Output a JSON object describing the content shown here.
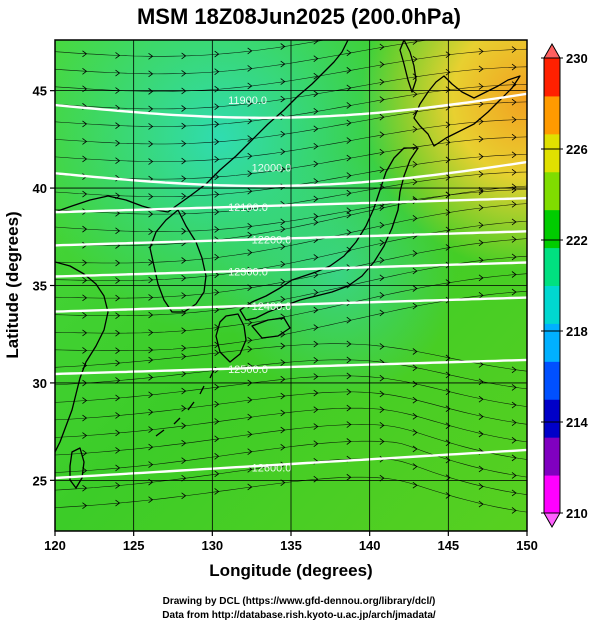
{
  "title": "MSM 18Z08Jun2025 (200.0hPa)",
  "xlabel": "Longitude (degrees)",
  "ylabel": "Latitude  (degrees)",
  "credits": [
    "Drawing by DCL (https://www.gfd-dennou.org/library/dcl/)",
    "Data from http://database.rish.kyoto-u.ac.jp/arch/jmadata/"
  ],
  "map": {
    "lon_range": [
      120,
      150
    ],
    "lat_range": [
      22.4,
      47.6
    ],
    "x_ticks": [
      "120",
      "125",
      "130",
      "135",
      "140",
      "145",
      "150"
    ],
    "y_ticks": [
      "25",
      "30",
      "35",
      "40",
      "45"
    ],
    "grid": true
  },
  "colorbar": {
    "min": 210,
    "max": 230,
    "labels": [
      "230",
      "226",
      "222",
      "218",
      "214",
      "210"
    ],
    "label_values": [
      230,
      226,
      222,
      218,
      214,
      210
    ],
    "colors": [
      "#ff00ff",
      "#8000c0",
      "#0000c8",
      "#0050ff",
      "#00b0ff",
      "#00d8d0",
      "#00e080",
      "#00cc00",
      "#80dd00",
      "#e0e000",
      "#ff9a00",
      "#ff2000"
    ]
  },
  "contours": [
    {
      "label": "11900.0",
      "lat": 44.5
    },
    {
      "label": "12000.0",
      "lat": 41.0
    },
    {
      "label": "12100.0",
      "lat": 39.0
    },
    {
      "label": "12200.0",
      "lat": 37.3
    },
    {
      "label": "12300.0",
      "lat": 35.7
    },
    {
      "label": "12400.0",
      "lat": 33.9
    },
    {
      "label": "12500.0",
      "lat": 30.7
    },
    {
      "label": "12600.0",
      "lat": 25.6
    }
  ],
  "colors": {
    "contour": "#ffffff",
    "coast": "#000000",
    "streamline": "#000000",
    "field_warm": "#e8d830",
    "field_main": "#40cc20",
    "field_cool": "#30d8a0"
  }
}
